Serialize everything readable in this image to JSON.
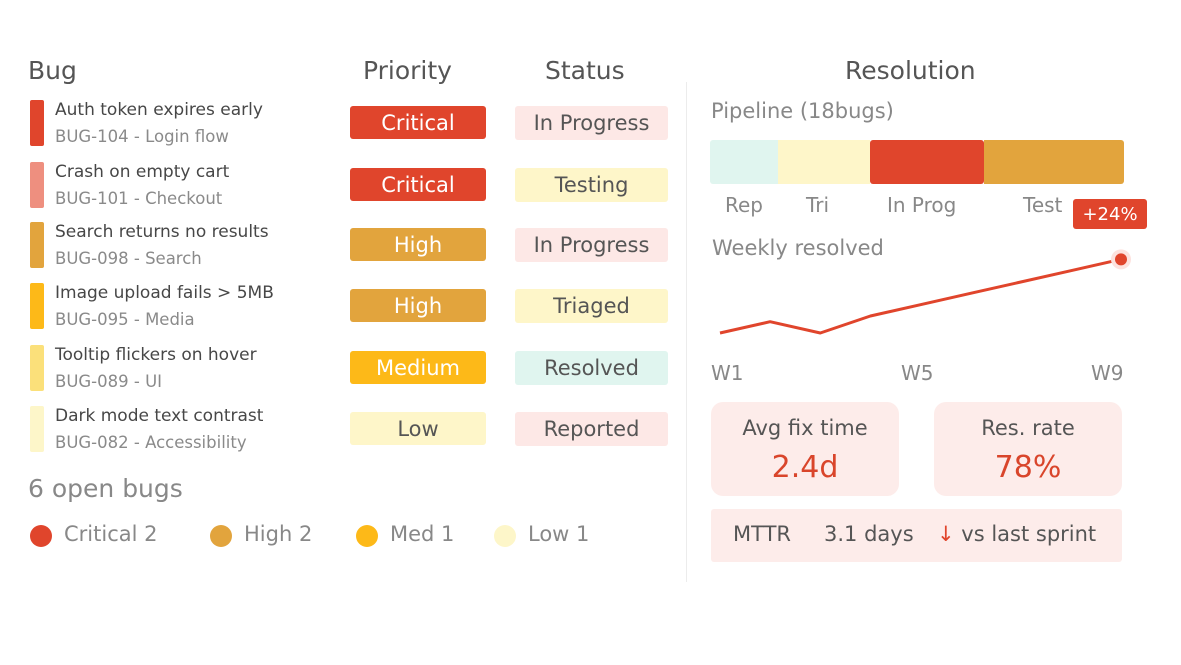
{
  "headers": {
    "bug": "Bug",
    "priority": "Priority",
    "status": "Status",
    "resolution": "Resolution"
  },
  "bugs": [
    {
      "title": "Auth token expires early",
      "sub": "BUG-104 - Login flow",
      "priority": "Critical",
      "status": "In Progress",
      "bar_color": "#e0452c"
    },
    {
      "title": "Crash on empty cart",
      "sub": "BUG-101 - Checkout",
      "priority": "Critical",
      "status": "Testing",
      "bar_color": "#ee8f7f"
    },
    {
      "title": "Search returns no results",
      "sub": "BUG-098 - Search",
      "priority": "High",
      "status": "In Progress",
      "bar_color": "#e2a43d"
    },
    {
      "title": "Image upload fails > 5MB",
      "sub": "BUG-095 - Media",
      "priority": "High",
      "status": "Triaged",
      "bar_color": "#fdb918"
    },
    {
      "title": "Tooltip flickers on hover",
      "sub": "BUG-089 - UI",
      "priority": "Medium",
      "status": "Resolved",
      "bar_color": "#fbe07a"
    },
    {
      "title": "Dark mode text contrast",
      "sub": "BUG-082 - Accessibility",
      "priority": "Low",
      "status": "Reported",
      "bar_color": "#fdf6c9"
    }
  ],
  "priority_colors": {
    "Critical": {
      "bg": "#e0452c",
      "fg": "#ffffff"
    },
    "High": {
      "bg": "#e2a43d",
      "fg": "#ffffff"
    },
    "Medium": {
      "bg": "#fdb918",
      "fg": "#ffffff"
    },
    "Low": {
      "bg": "#fef6c9",
      "fg": "#555555"
    }
  },
  "status_colors": {
    "In Progress": "#fde8e6",
    "Testing": "#fef6c9",
    "Triaged": "#fef6c9",
    "Resolved": "#e0f5ef",
    "Reported": "#fde8e6"
  },
  "open_bugs_label": "6 open bugs",
  "legend": [
    {
      "label": "Critical 2",
      "color": "#e0452c"
    },
    {
      "label": "High 2",
      "color": "#e2a43d"
    },
    {
      "label": "Med 1",
      "color": "#fdb918"
    },
    {
      "label": "Low 1",
      "color": "#fdf6c9"
    }
  ],
  "pipeline": {
    "title": "Pipeline (18bugs)",
    "segments": [
      {
        "label": "Rep",
        "fraction": 0.165,
        "color": "#e0f5ef"
      },
      {
        "label": "Tri",
        "fraction": 0.222,
        "color": "#fef6c9"
      },
      {
        "label": "In Prog",
        "fraction": 0.275,
        "color": "#e0452c"
      },
      {
        "label": "Test",
        "fraction": 0.338,
        "color": "#e2a43d"
      }
    ]
  },
  "weekly": {
    "title": "Weekly resolved",
    "badge": "+24%",
    "x_labels": [
      "W1",
      "W5",
      "W9"
    ],
    "line_color": "#e0452c"
  },
  "chart_data": {
    "type": "line",
    "x": [
      "W1",
      "W2",
      "W3",
      "W4",
      "W5",
      "W6",
      "W7",
      "W8",
      "W9"
    ],
    "series": [
      {
        "values": [
          3,
          5,
          3,
          6,
          8,
          10,
          12,
          14,
          16
        ]
      }
    ],
    "ylim": [
      0,
      18
    ]
  },
  "cards": [
    {
      "label": "Avg fix time",
      "value": "2.4d"
    },
    {
      "label": "Res. rate",
      "value": "78%"
    }
  ],
  "mttr": {
    "label": "MTTR",
    "value": "3.1 days",
    "trend": "↓ vs last sprint"
  }
}
